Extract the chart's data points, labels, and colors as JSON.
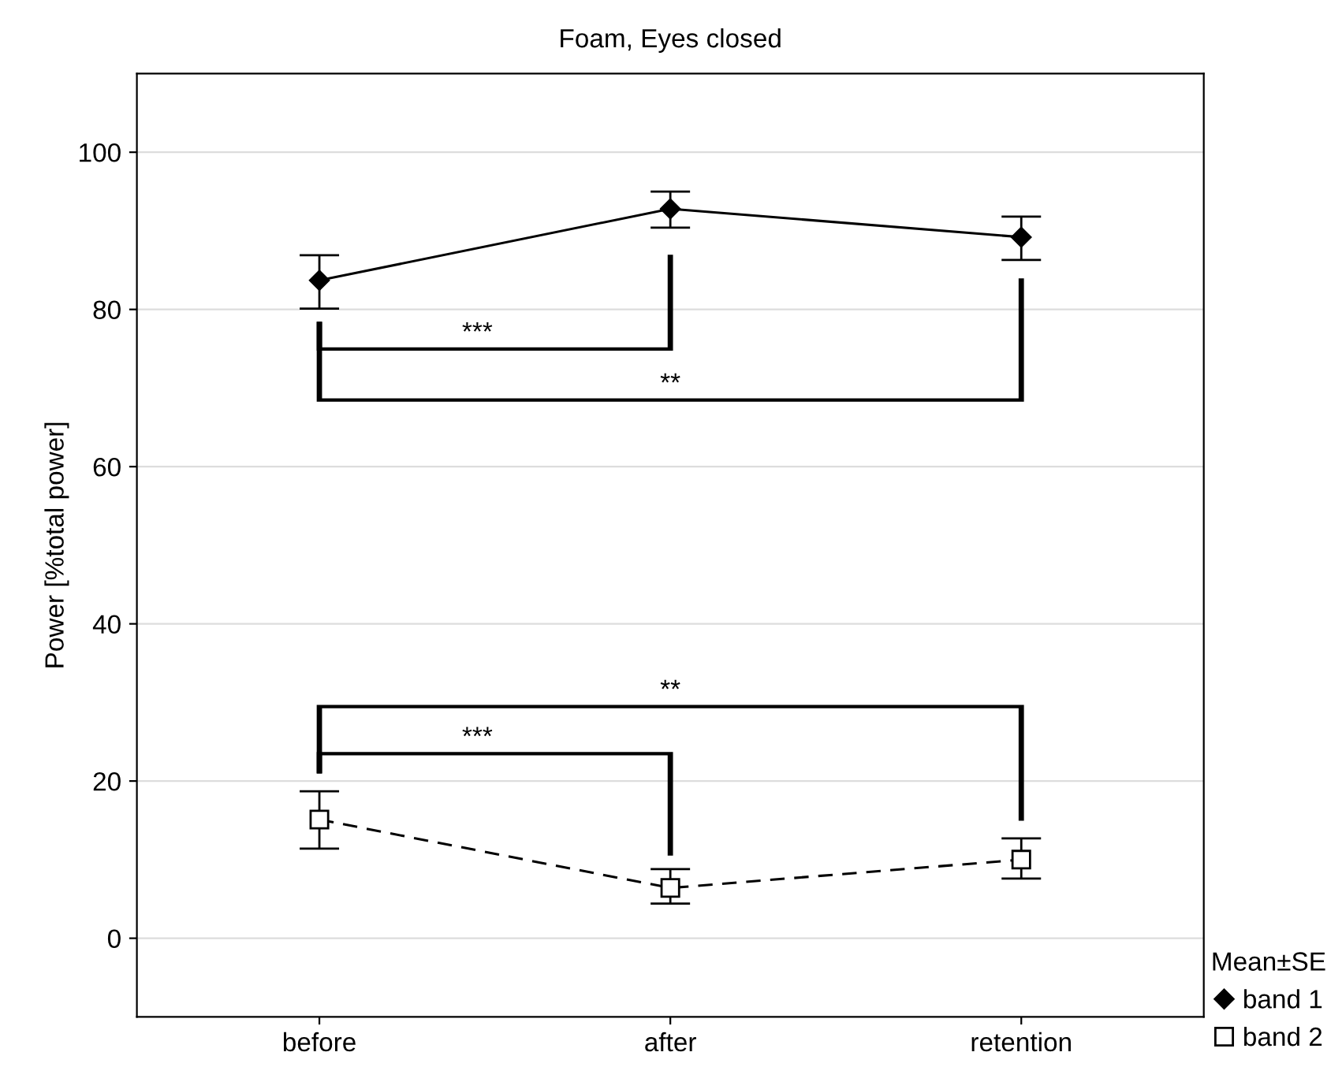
{
  "chart_data": {
    "type": "line",
    "title": "Foam, Eyes closed",
    "ylabel": "Power [%total power]",
    "categories": [
      "before",
      "after",
      "retention"
    ],
    "series": [
      {
        "name": "band 1",
        "color": "#000000",
        "marker": "diamond",
        "line_style": "solid",
        "values": [
          83.7,
          92.8,
          89.2
        ],
        "errors": [
          [
            80.1,
            86.9
          ],
          [
            90.4,
            95.0
          ],
          [
            86.3,
            91.8
          ]
        ]
      },
      {
        "name": "band 2",
        "color": "#000000",
        "marker": "square",
        "line_style": "dashed",
        "values": [
          15.1,
          6.4,
          10.0
        ],
        "errors": [
          [
            11.4,
            18.7
          ],
          [
            4.4,
            8.8
          ],
          [
            7.6,
            12.7
          ]
        ]
      }
    ],
    "ylim": [
      -10,
      110
    ],
    "yticks": [
      0,
      20,
      40,
      60,
      80,
      100
    ],
    "grid": "y",
    "legend": "bottom right",
    "legend_title": "Mean±SE",
    "annotations": [
      "***",
      "**",
      "***",
      "**"
    ]
  }
}
